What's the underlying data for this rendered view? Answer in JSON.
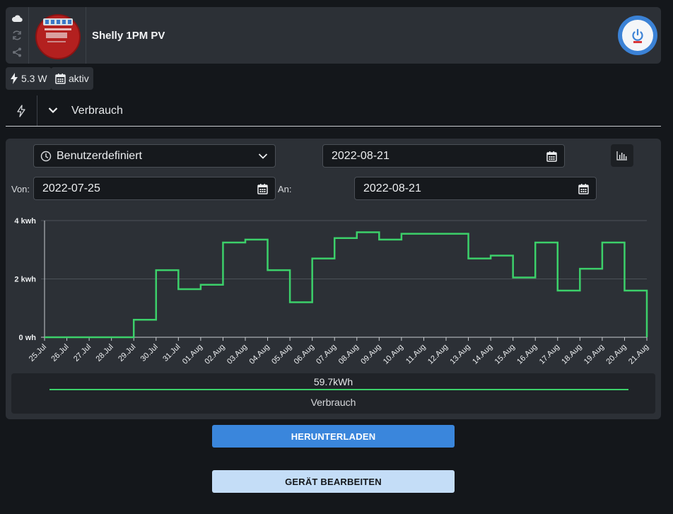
{
  "device": {
    "name": "Shelly 1PM PV",
    "icons": [
      "cloud-icon",
      "refresh-icon",
      "share-icon"
    ]
  },
  "status_chips": [
    {
      "icon": "lightning-icon",
      "label": "5.3 W"
    },
    {
      "icon": "calendar-icon",
      "label": "aktiv"
    }
  ],
  "section": {
    "icon": "lightning-outline-icon",
    "title": "Verbrauch"
  },
  "filters": {
    "range_select": "Benutzerdefiniert",
    "date": "2022-08-21",
    "from_label": "Von:",
    "from_value": "2022-07-25",
    "to_label": "An:",
    "to_value": "2022-08-21"
  },
  "chart_data": {
    "type": "line",
    "step": true,
    "x": [
      "25.Jul",
      "26.Jul",
      "27.Jul",
      "28.Jul",
      "29.Jul",
      "30.Jul",
      "31.Jul",
      "01.Aug",
      "02.Aug",
      "03.Aug",
      "04.Aug",
      "05.Aug",
      "06.Aug",
      "07.Aug",
      "08.Aug",
      "09.Aug",
      "10.Aug",
      "11.Aug",
      "12.Aug",
      "13.Aug",
      "14.Aug",
      "15.Aug",
      "16.Aug",
      "17.Aug",
      "18.Aug",
      "19.Aug",
      "20.Aug",
      "21.Aug"
    ],
    "series": [
      {
        "name": "Verbrauch",
        "color": "#3cd06a",
        "values": [
          0,
          0,
          0,
          0,
          0.6,
          2.3,
          1.65,
          1.8,
          3.25,
          3.35,
          2.3,
          1.2,
          2.7,
          3.4,
          3.6,
          3.35,
          3.55,
          3.55,
          3.55,
          2.7,
          2.8,
          2.05,
          3.25,
          1.6,
          2.35,
          3.25,
          1.6,
          0
        ]
      }
    ],
    "y_ticks": [
      "0 wh",
      "2 kwh",
      "4 kwh"
    ],
    "ylim": [
      0,
      4
    ],
    "grid": true,
    "total": "59.7kWh"
  },
  "buttons": {
    "download": "HERUNTERLADEN",
    "edit": "GERÄT BEARBEITEN"
  }
}
